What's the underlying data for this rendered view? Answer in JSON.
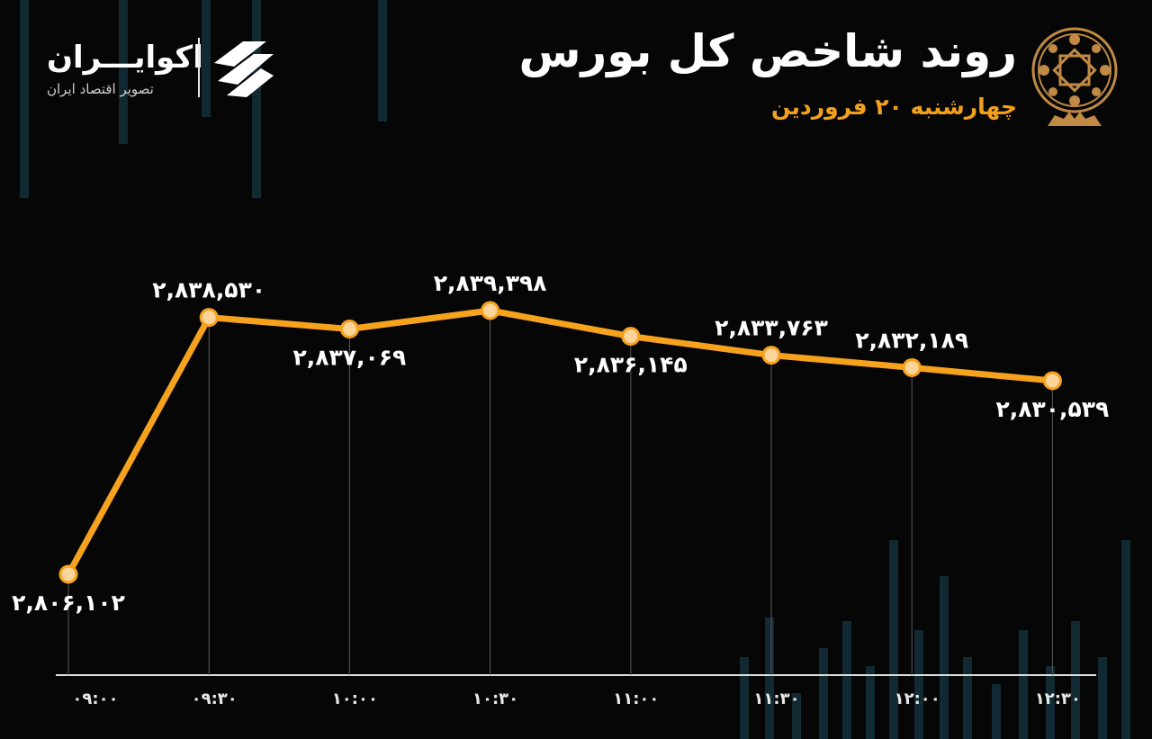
{
  "brand": {
    "name": "اکوایـــران",
    "tagline": "تصویر اقتصاد ایران"
  },
  "header": {
    "title": "روند شاخص کل بورس",
    "subtitle": "چهارشنبه ۲۰ فروردین"
  },
  "colors": {
    "accent": "#f6a21d",
    "background": "#060606",
    "gridline": "#5a5a5a",
    "candle": "#16303a"
  },
  "chart_data": {
    "type": "line",
    "title": "روند شاخص کل بورس",
    "subtitle": "چهارشنبه ۲۰ فروردین",
    "x": [
      "۰۹:۰۰",
      "۰۹:۳۰",
      "۱۰:۰۰",
      "۱۰:۳۰",
      "۱۱:۰۰",
      "۱۱:۳۰",
      "۱۲:۰۰",
      "۱۲:۳۰"
    ],
    "series": [
      {
        "values": [
          2806102,
          2838530,
          2837069,
          2839398,
          2836145,
          2833763,
          2832189,
          2830539
        ],
        "labels": [
          "۲,۸۰۶,۱۰۲",
          "۲,۸۳۸,۵۳۰",
          "۲,۸۳۷,۰۶۹",
          "۲,۸۳۹,۳۹۸",
          "۲,۸۳۶,۱۴۵",
          "۲,۸۳۳,۷۶۳",
          "۲,۸۳۲,۱۸۹",
          "۲,۸۳۰,۵۳۹"
        ]
      }
    ],
    "label_positions": [
      "below",
      "above",
      "below",
      "above",
      "below",
      "above",
      "above",
      "below"
    ],
    "ylim": [
      2806102,
      2839398
    ],
    "grid": false,
    "legend": "none",
    "xlabel": "",
    "ylabel": ""
  }
}
